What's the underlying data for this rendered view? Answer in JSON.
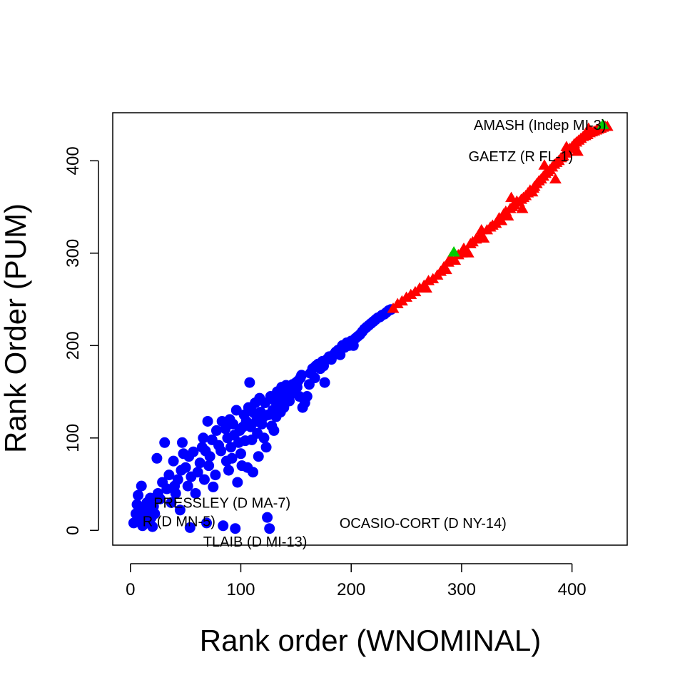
{
  "chart_data": {
    "type": "scatter",
    "title": "",
    "xlabel": "Rank order (WNOMINAL)",
    "ylabel": "Rank Order (PUM)",
    "xlim": [
      -16,
      450
    ],
    "ylim": [
      -16,
      452
    ],
    "xticks": [
      0,
      100,
      200,
      300,
      400
    ],
    "yticks": [
      0,
      100,
      200,
      300,
      400
    ],
    "grid": false,
    "legend": "none",
    "series": [
      {
        "marker": "circle",
        "color": "#0000ff",
        "points": [
          [
            3,
            8
          ],
          [
            5,
            18
          ],
          [
            6,
            28
          ],
          [
            7,
            38
          ],
          [
            8,
            12
          ],
          [
            9,
            22
          ],
          [
            10,
            48
          ],
          [
            11,
            5
          ],
          [
            12,
            15
          ],
          [
            13,
            25
          ],
          [
            14,
            10
          ],
          [
            15,
            30
          ],
          [
            16,
            20
          ],
          [
            17,
            8
          ],
          [
            18,
            35
          ],
          [
            19,
            14
          ],
          [
            20,
            4
          ],
          [
            21,
            26
          ],
          [
            22,
            18
          ],
          [
            24,
            78
          ],
          [
            25,
            40
          ],
          [
            27,
            34
          ],
          [
            29,
            52
          ],
          [
            31,
            95
          ],
          [
            33,
            45
          ],
          [
            35,
            60
          ],
          [
            37,
            30
          ],
          [
            39,
            75
          ],
          [
            40,
            48
          ],
          [
            41,
            40
          ],
          [
            43,
            55
          ],
          [
            45,
            22
          ],
          [
            46,
            65
          ],
          [
            47,
            95
          ],
          [
            48,
            83
          ],
          [
            50,
            68
          ],
          [
            52,
            48
          ],
          [
            53,
            80
          ],
          [
            54,
            3
          ],
          [
            55,
            58
          ],
          [
            57,
            85
          ],
          [
            59,
            40
          ],
          [
            61,
            63
          ],
          [
            63,
            73
          ],
          [
            65,
            90
          ],
          [
            66,
            100
          ],
          [
            67,
            55
          ],
          [
            68,
            86
          ],
          [
            69,
            8
          ],
          [
            70,
            118
          ],
          [
            71,
            70
          ],
          [
            72,
            80
          ],
          [
            74,
            98
          ],
          [
            75,
            47
          ],
          [
            77,
            60
          ],
          [
            78,
            108
          ],
          [
            80,
            92
          ],
          [
            82,
            86
          ],
          [
            83,
            118
          ],
          [
            84,
            5
          ],
          [
            86,
            110
          ],
          [
            87,
            75
          ],
          [
            88,
            100
          ],
          [
            89,
            65
          ],
          [
            90,
            120
          ],
          [
            91,
            90
          ],
          [
            92,
            78
          ],
          [
            93,
            115
          ],
          [
            94,
            103
          ],
          [
            95,
            2
          ],
          [
            96,
            130
          ],
          [
            97,
            52
          ],
          [
            98,
            95
          ],
          [
            99,
            108
          ],
          [
            100,
            83
          ],
          [
            101,
            70
          ],
          [
            102,
            112
          ],
          [
            103,
            125
          ],
          [
            104,
            97
          ],
          [
            105,
            118
          ],
          [
            106,
            68
          ],
          [
            107,
            133
          ],
          [
            108,
            160
          ],
          [
            109,
            112
          ],
          [
            110,
            98
          ],
          [
            111,
            63
          ],
          [
            112,
            127
          ],
          [
            113,
            138
          ],
          [
            114,
            118
          ],
          [
            115,
            105
          ],
          [
            116,
            80
          ],
          [
            117,
            143
          ],
          [
            118,
            128
          ],
          [
            119,
            115
          ],
          [
            120,
            122
          ],
          [
            121,
            100
          ],
          [
            122,
            138
          ],
          [
            123,
            90
          ],
          [
            124,
            14
          ],
          [
            125,
            125
          ],
          [
            126,
            2
          ],
          [
            127,
            145
          ],
          [
            128,
            113
          ],
          [
            129,
            130
          ],
          [
            130,
            108
          ],
          [
            131,
            140
          ],
          [
            132,
            123
          ],
          [
            133,
            150
          ],
          [
            134,
            135
          ],
          [
            135,
            148
          ],
          [
            136,
            128
          ],
          [
            137,
            155
          ],
          [
            138,
            143
          ],
          [
            139,
            133
          ],
          [
            140,
            152
          ],
          [
            141,
            157
          ],
          [
            142,
            145
          ],
          [
            143,
            150
          ],
          [
            144,
            140
          ],
          [
            145,
            154
          ],
          [
            146,
            148
          ],
          [
            147,
            158
          ],
          [
            148,
            155
          ],
          [
            149,
            150
          ],
          [
            150,
            160
          ],
          [
            151,
            155
          ],
          [
            152,
            162
          ],
          [
            153,
            145
          ],
          [
            154,
            165
          ],
          [
            155,
            168
          ],
          [
            156,
            133
          ],
          [
            158,
            138
          ],
          [
            160,
            145
          ],
          [
            162,
            158
          ],
          [
            163,
            170
          ],
          [
            165,
            175
          ],
          [
            167,
            165
          ],
          [
            168,
            178
          ],
          [
            170,
            180
          ],
          [
            172,
            175
          ],
          [
            174,
            183
          ],
          [
            175,
            178
          ],
          [
            176,
            160
          ],
          [
            178,
            185
          ],
          [
            180,
            188
          ],
          [
            182,
            185
          ],
          [
            184,
            190
          ],
          [
            186,
            193
          ],
          [
            188,
            195
          ],
          [
            190,
            190
          ],
          [
            192,
            200
          ],
          [
            194,
            198
          ],
          [
            196,
            203
          ],
          [
            198,
            200
          ],
          [
            200,
            205
          ],
          [
            202,
            200
          ],
          [
            204,
            208
          ],
          [
            206,
            210
          ],
          [
            208,
            212
          ],
          [
            210,
            215
          ],
          [
            212,
            218
          ],
          [
            214,
            220
          ],
          [
            216,
            222
          ],
          [
            218,
            224
          ],
          [
            220,
            226
          ],
          [
            222,
            228
          ],
          [
            224,
            230
          ],
          [
            226,
            231
          ],
          [
            228,
            233
          ],
          [
            230,
            234
          ],
          [
            232,
            236
          ],
          [
            234,
            238
          ],
          [
            236,
            239
          ]
        ]
      },
      {
        "marker": "triangle",
        "color": "#ff0000",
        "points": [
          [
            238,
            240
          ],
          [
            242,
            245
          ],
          [
            246,
            248
          ],
          [
            250,
            252
          ],
          [
            254,
            255
          ],
          [
            258,
            258
          ],
          [
            262,
            262
          ],
          [
            266,
            265
          ],
          [
            270,
            270
          ],
          [
            274,
            272
          ],
          [
            278,
            276
          ],
          [
            281,
            280
          ],
          [
            284,
            285
          ],
          [
            286,
            282
          ],
          [
            288,
            290
          ],
          [
            291,
            293
          ],
          [
            294,
            292
          ],
          [
            297,
            298
          ],
          [
            300,
            300
          ],
          [
            302,
            305
          ],
          [
            305,
            302
          ],
          [
            308,
            310
          ],
          [
            310,
            312
          ],
          [
            313,
            315
          ],
          [
            316,
            318
          ],
          [
            318,
            320
          ],
          [
            320,
            316
          ],
          [
            323,
            325
          ],
          [
            326,
            328
          ],
          [
            328,
            330
          ],
          [
            331,
            332
          ],
          [
            334,
            338
          ],
          [
            336,
            335
          ],
          [
            338,
            342
          ],
          [
            340,
            345
          ],
          [
            342,
            340
          ],
          [
            344,
            348
          ],
          [
            346,
            350
          ],
          [
            348,
            352
          ],
          [
            350,
            356
          ],
          [
            352,
            355
          ],
          [
            354,
            358
          ],
          [
            356,
            360
          ],
          [
            358,
            362
          ],
          [
            360,
            365
          ],
          [
            362,
            368
          ],
          [
            364,
            366
          ],
          [
            366,
            372
          ],
          [
            368,
            375
          ],
          [
            370,
            378
          ],
          [
            372,
            380
          ],
          [
            374,
            383
          ],
          [
            376,
            386
          ],
          [
            378,
            388
          ],
          [
            380,
            390
          ],
          [
            382,
            393
          ],
          [
            384,
            396
          ],
          [
            386,
            398
          ],
          [
            388,
            400
          ],
          [
            390,
            403
          ],
          [
            392,
            405
          ],
          [
            394,
            408
          ],
          [
            396,
            410
          ],
          [
            398,
            413
          ],
          [
            400,
            415
          ],
          [
            402,
            418
          ],
          [
            404,
            420
          ],
          [
            406,
            422
          ],
          [
            408,
            424
          ],
          [
            410,
            426
          ],
          [
            412,
            427
          ],
          [
            414,
            428
          ],
          [
            416,
            430
          ],
          [
            418,
            431
          ],
          [
            420,
            432
          ],
          [
            422,
            433
          ],
          [
            424,
            434
          ],
          [
            426,
            435
          ],
          [
            428,
            436
          ],
          [
            430,
            437
          ],
          [
            432,
            437
          ],
          [
            365,
            370
          ],
          [
            345,
            360
          ],
          [
            355,
            348
          ],
          [
            375,
            395
          ],
          [
            385,
            380
          ],
          [
            395,
            415
          ],
          [
            405,
            410
          ],
          [
            415,
            435
          ],
          [
            268,
            262
          ],
          [
            290,
            295
          ],
          [
            306,
            300
          ],
          [
            318,
            325
          ]
        ]
      },
      {
        "marker": "triangle",
        "color": "#00cc00",
        "points": [
          [
            293,
            301
          ],
          [
            428,
            439
          ]
        ]
      }
    ],
    "annotations": [
      {
        "text": "AMASH (Indep MI-3)",
        "x": 431,
        "y": 439,
        "anchor": "end"
      },
      {
        "text": "GAETZ (R FL-1)",
        "x": 401,
        "y": 405,
        "anchor": "end"
      },
      {
        "text": "PRESSLEY (D MA-7)",
        "x": 83,
        "y": 30,
        "anchor": "middle"
      },
      {
        "text": "OCASIO-CORT (D NY-14)",
        "x": 265,
        "y": 8,
        "anchor": "middle"
      },
      {
        "text": "R (D MN-5)",
        "x": 44,
        "y": 10,
        "anchor": "middle"
      },
      {
        "text": "TLAIB (D MI-13)",
        "x": 113,
        "y": -12,
        "anchor": "middle"
      }
    ]
  }
}
